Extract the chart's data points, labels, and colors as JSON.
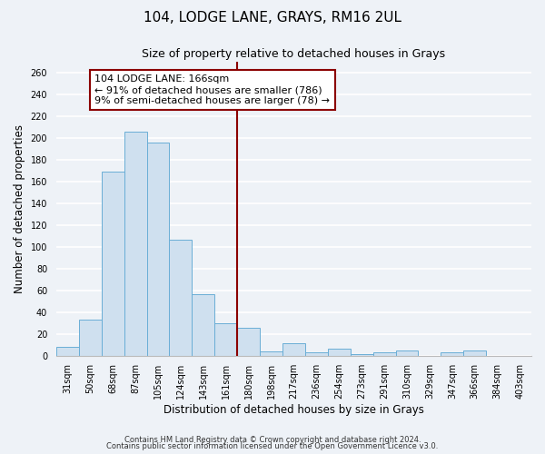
{
  "title": "104, LODGE LANE, GRAYS, RM16 2UL",
  "subtitle": "Size of property relative to detached houses in Grays",
  "xlabel": "Distribution of detached houses by size in Grays",
  "ylabel": "Number of detached properties",
  "categories": [
    "31sqm",
    "50sqm",
    "68sqm",
    "87sqm",
    "105sqm",
    "124sqm",
    "143sqm",
    "161sqm",
    "180sqm",
    "198sqm",
    "217sqm",
    "236sqm",
    "254sqm",
    "273sqm",
    "291sqm",
    "310sqm",
    "329sqm",
    "347sqm",
    "366sqm",
    "384sqm",
    "403sqm"
  ],
  "values": [
    8,
    33,
    169,
    206,
    196,
    107,
    57,
    30,
    26,
    4,
    12,
    3,
    7,
    2,
    3,
    5,
    0,
    3,
    5,
    0,
    0
  ],
  "bar_color": "#cfe0ef",
  "bar_edge_color": "#6aaed6",
  "vline_pos": 7.5,
  "vline_color": "#8b0000",
  "annotation_title": "104 LODGE LANE: 166sqm",
  "annotation_line1": "← 91% of detached houses are smaller (786)",
  "annotation_line2": "9% of semi-detached houses are larger (78) →",
  "annotation_box_color": "#ffffff",
  "annotation_box_edge": "#8b0000",
  "ylim": [
    0,
    270
  ],
  "yticks": [
    0,
    20,
    40,
    60,
    80,
    100,
    120,
    140,
    160,
    180,
    200,
    220,
    240,
    260
  ],
  "footer1": "Contains HM Land Registry data © Crown copyright and database right 2024.",
  "footer2": "Contains public sector information licensed under the Open Government Licence v3.0.",
  "background_color": "#eef2f7",
  "grid_color": "#ffffff",
  "title_fontsize": 11,
  "subtitle_fontsize": 9,
  "tick_fontsize": 7,
  "ylabel_fontsize": 8.5,
  "xlabel_fontsize": 8.5,
  "footer_fontsize": 6,
  "ann_fontsize": 8
}
